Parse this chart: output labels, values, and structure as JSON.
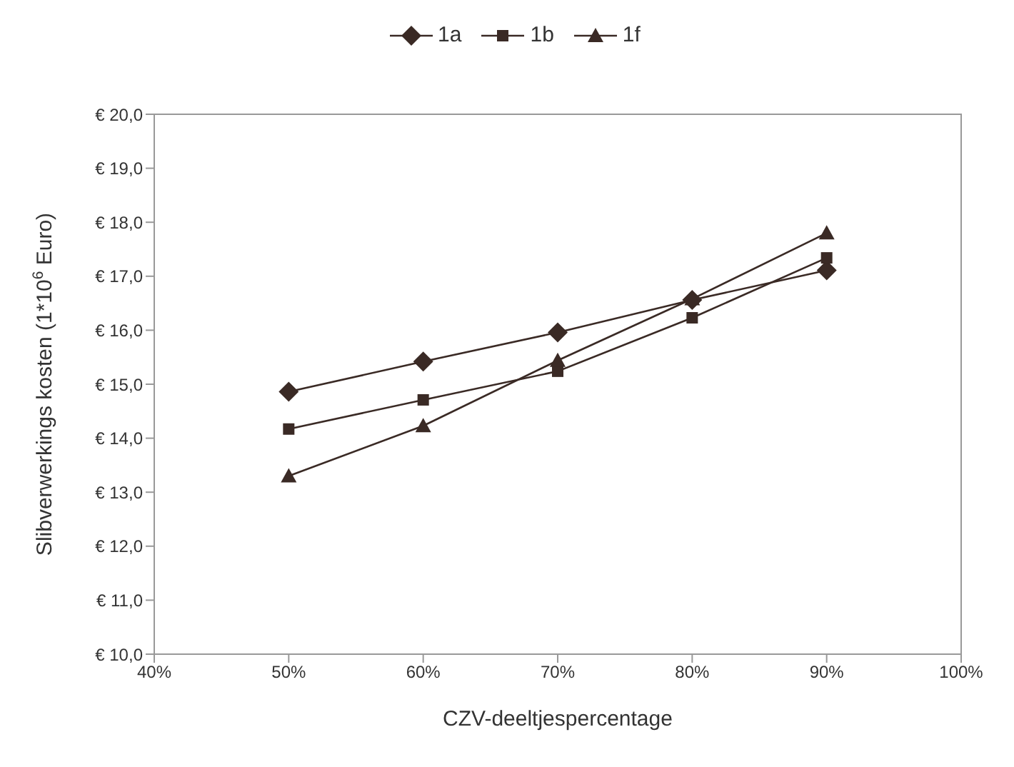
{
  "chart_data": {
    "type": "line",
    "xlabel": "CZV-deeltjespercentage",
    "ylabel": "Slibverwerkings kosten (1*10$^{6}$ Euro)",
    "x": [
      50,
      60,
      70,
      80,
      90
    ],
    "series": [
      {
        "name": "1a",
        "color": "#3a2a25",
        "marker": "diamond",
        "values": [
          14.86,
          15.42,
          15.96,
          16.56,
          17.11
        ]
      },
      {
        "name": "1b",
        "color": "#3a2a25",
        "marker": "square",
        "values": [
          14.17,
          14.71,
          15.24,
          16.23,
          17.34
        ]
      },
      {
        "name": "1f",
        "color": "#3a2a25",
        "marker": "triangle",
        "values": [
          13.3,
          14.23,
          15.44,
          16.58,
          17.8
        ]
      }
    ],
    "xlim": [
      40,
      100
    ],
    "xticks": [
      {
        "value": 40,
        "label": "40%"
      },
      {
        "value": 50,
        "label": "50%"
      },
      {
        "value": 60,
        "label": "60%"
      },
      {
        "value": 70,
        "label": "70%"
      },
      {
        "value": 80,
        "label": "80%"
      },
      {
        "value": 90,
        "label": "90%"
      },
      {
        "value": 100,
        "label": "100%"
      }
    ],
    "ylim": [
      10,
      20
    ],
    "yticks": [
      {
        "value": 10,
        "label": "€ 10,0"
      },
      {
        "value": 11,
        "label": "€ 11,0"
      },
      {
        "value": 12,
        "label": "€ 12,0"
      },
      {
        "value": 13,
        "label": "€ 13,0"
      },
      {
        "value": 14,
        "label": "€ 14,0"
      },
      {
        "value": 15,
        "label": "€ 15,0"
      },
      {
        "value": 16,
        "label": "€ 16,0"
      },
      {
        "value": 17,
        "label": "€ 17,0"
      },
      {
        "value": 18,
        "label": "€ 18,0"
      },
      {
        "value": 19,
        "label": "€ 19,0"
      },
      {
        "value": 20,
        "label": "€ 20,0"
      }
    ],
    "legend": "top",
    "line_style": "solid"
  }
}
